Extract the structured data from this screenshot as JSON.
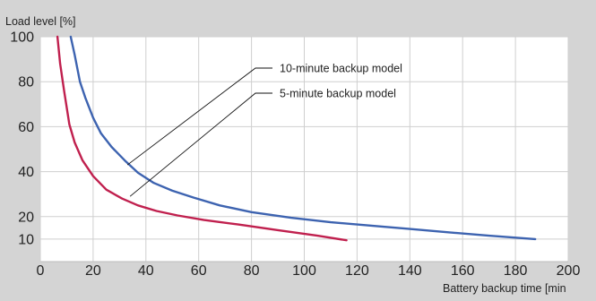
{
  "chart_data": {
    "type": "line",
    "ylabel": "Load level [%]",
    "xlabel": "Battery backup time [min",
    "xlim": [
      0,
      200
    ],
    "ylim": [
      0,
      100
    ],
    "x_ticks": [
      "0",
      "20",
      "40",
      "60",
      "80",
      "100",
      "120",
      "140",
      "160",
      "180",
      "200"
    ],
    "y_ticks": [
      "10",
      "20",
      "40",
      "60",
      "80",
      "100"
    ],
    "grid": true,
    "series": [
      {
        "name": "10-minute backup model",
        "color": "#3d63b0",
        "x": [
          11.5,
          13,
          15,
          17,
          20,
          23,
          27,
          32,
          37,
          43,
          50,
          58,
          68,
          80,
          95,
          110,
          125,
          140,
          155,
          170,
          187.5
        ],
        "y": [
          100,
          92,
          80,
          73,
          64,
          57,
          51,
          45,
          39.5,
          35,
          31.5,
          28.5,
          25,
          22,
          19.5,
          17.5,
          16,
          14.5,
          13,
          11.5,
          10
        ]
      },
      {
        "name": "5-minute backup model",
        "color": "#c0204e",
        "x": [
          6.5,
          7.5,
          9,
          11,
          13,
          16,
          20,
          25,
          31,
          37,
          44,
          52,
          62,
          75,
          90,
          105,
          116
        ],
        "y": [
          100,
          88,
          76,
          61,
          53,
          45,
          38,
          32,
          28,
          25,
          22.5,
          20.5,
          18.5,
          16.5,
          14,
          11.5,
          9.5
        ]
      }
    ],
    "annotations": [
      {
        "text": "10-minute backup model",
        "target_series": 0
      },
      {
        "text": "5-minute backup model",
        "target_series": 1
      }
    ]
  }
}
